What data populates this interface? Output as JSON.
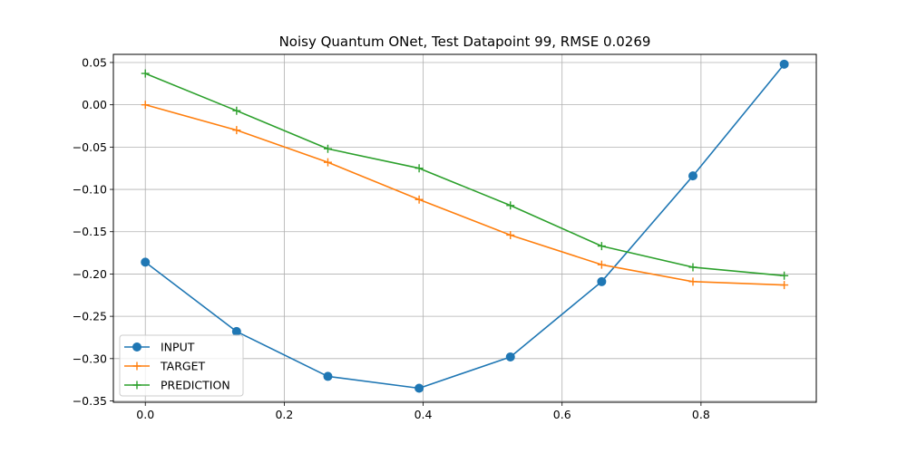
{
  "chart_data": {
    "type": "line",
    "title": "Noisy Quantum ONet, Test Datapoint 99, RMSE 0.0269",
    "xlabel": "",
    "ylabel": "",
    "xlim": [
      -0.046,
      0.966
    ],
    "ylim": [
      -0.3516,
      0.0596
    ],
    "xticks": [
      0.0,
      0.2,
      0.4,
      0.6,
      0.8
    ],
    "xtick_labels": [
      "0.0",
      "0.2",
      "0.4",
      "0.6",
      "0.8"
    ],
    "yticks": [
      0.05,
      0.0,
      -0.05,
      -0.1,
      -0.15,
      -0.2,
      -0.25,
      -0.3,
      -0.35
    ],
    "ytick_labels": [
      "0.05",
      "0.00",
      "−0.05",
      "−0.10",
      "−0.15",
      "−0.20",
      "−0.25",
      "−0.30",
      "−0.35"
    ],
    "grid": true,
    "legend_position": "lower-left",
    "x": [
      0.0,
      0.1314,
      0.2628,
      0.3942,
      0.5256,
      0.657,
      0.7884,
      0.9198
    ],
    "series": [
      {
        "name": "INPUT",
        "color": "#1f77b4",
        "marker": "circle",
        "values": [
          -0.186,
          -0.268,
          -0.321,
          -0.335,
          -0.298,
          -0.209,
          -0.084,
          0.048
        ]
      },
      {
        "name": "TARGET",
        "color": "#ff7f0e",
        "marker": "plus",
        "values": [
          0.0,
          -0.03,
          -0.068,
          -0.112,
          -0.154,
          -0.189,
          -0.209,
          -0.213
        ]
      },
      {
        "name": "PREDICTION",
        "color": "#2ca02c",
        "marker": "plus",
        "values": [
          0.037,
          -0.007,
          -0.052,
          -0.075,
          -0.119,
          -0.167,
          -0.192,
          -0.202
        ]
      }
    ]
  }
}
